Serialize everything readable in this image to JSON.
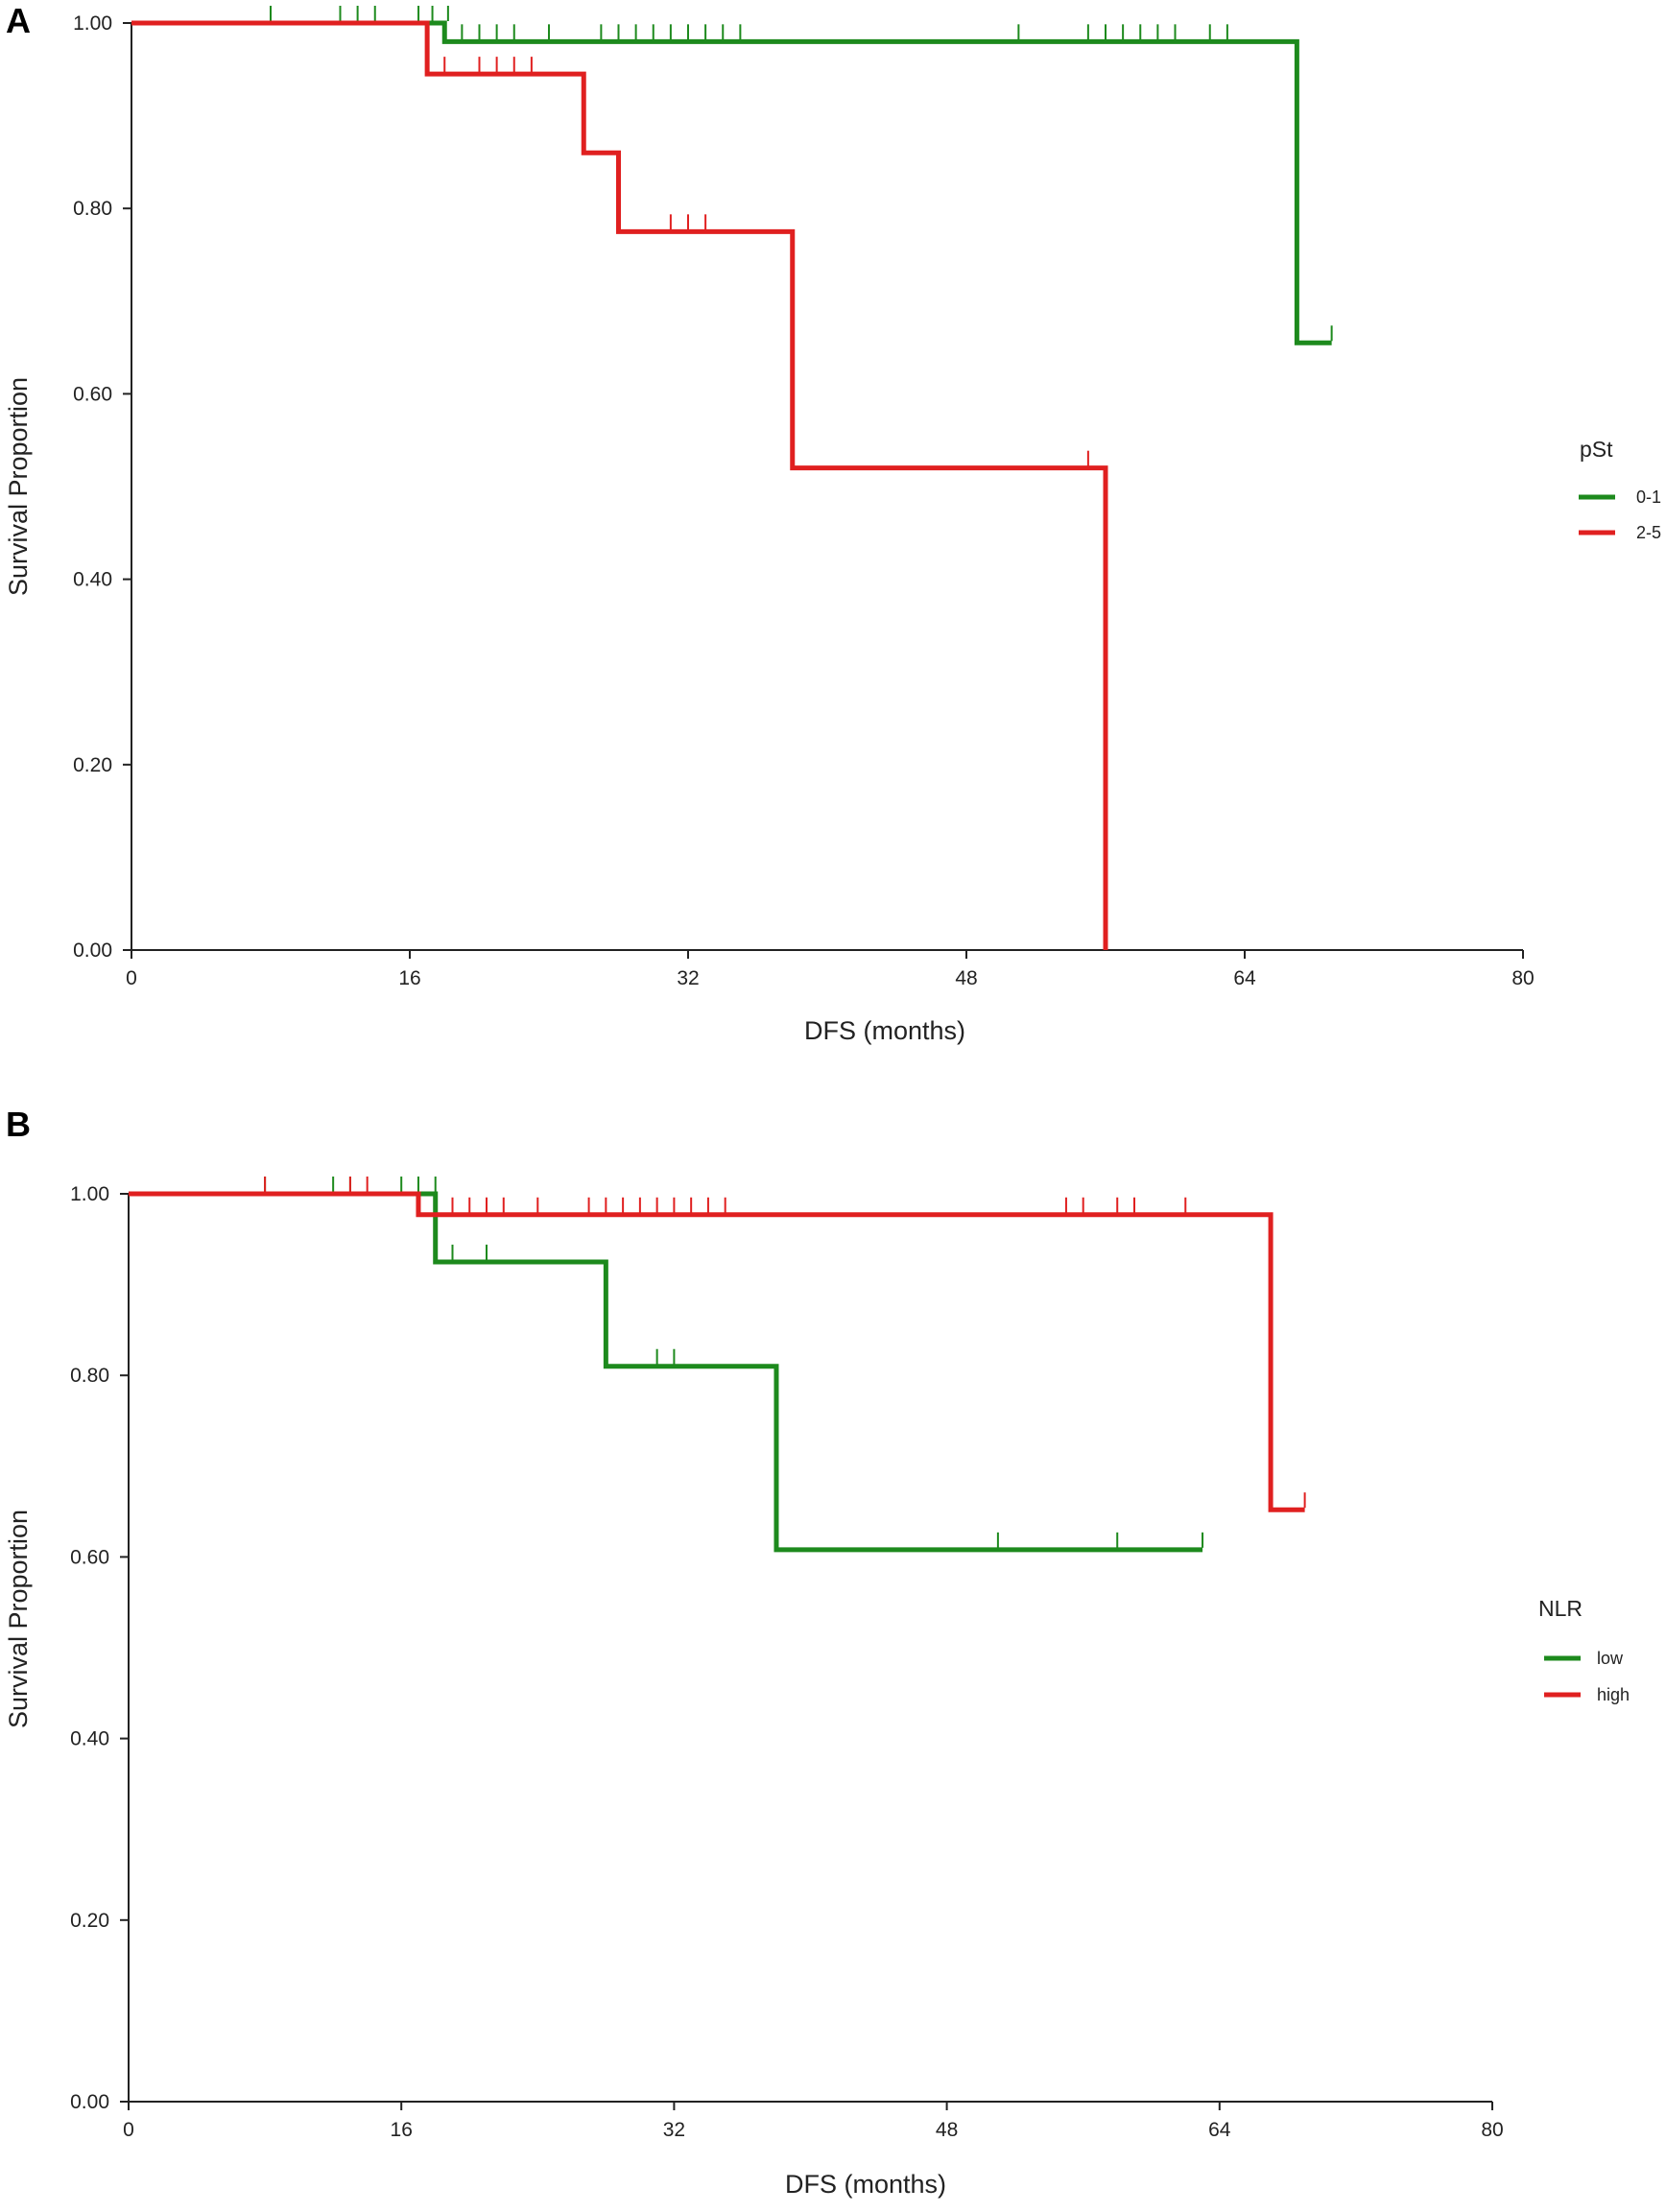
{
  "colors": {
    "green": "#1d8a1d",
    "red": "#e02020"
  },
  "chart_data": [
    {
      "panel": "A",
      "type": "line",
      "step": true,
      "xlabel": "DFS (months)",
      "ylabel": "Survival Proportion",
      "xlim": [
        0,
        80
      ],
      "ylim": [
        0,
        1
      ],
      "xticks": [
        0,
        16,
        32,
        48,
        64,
        80
      ],
      "xtick_labels": [
        "0",
        "16",
        "32",
        "48",
        "64",
        "80"
      ],
      "yticks": [
        0,
        0.2,
        0.4,
        0.6,
        0.8,
        1.0
      ],
      "ytick_labels": [
        "0.00",
        "0.20",
        "0.40",
        "0.60",
        "0.80",
        "1.00"
      ],
      "legend": {
        "title": "pSt",
        "position": "right"
      },
      "series": [
        {
          "name": "0-1",
          "color": "#1d8a1d",
          "steps": [
            [
              0,
              1.0
            ],
            [
              18.0,
              0.98
            ],
            [
              67.0,
              0.655
            ],
            [
              69.0,
              0.655
            ]
          ],
          "censored": [
            [
              8,
              1.0
            ],
            [
              12,
              1.0
            ],
            [
              13,
              1.0
            ],
            [
              14,
              1.0
            ],
            [
              16.5,
              1.0
            ],
            [
              17.3,
              1.0
            ],
            [
              18.2,
              1.0
            ],
            [
              19,
              0.98
            ],
            [
              20,
              0.98
            ],
            [
              21,
              0.98
            ],
            [
              22,
              0.98
            ],
            [
              24,
              0.98
            ],
            [
              27,
              0.98
            ],
            [
              28,
              0.98
            ],
            [
              29,
              0.98
            ],
            [
              30,
              0.98
            ],
            [
              31,
              0.98
            ],
            [
              32,
              0.98
            ],
            [
              33,
              0.98
            ],
            [
              34,
              0.98
            ],
            [
              35,
              0.98
            ],
            [
              51,
              0.98
            ],
            [
              55,
              0.98
            ],
            [
              56,
              0.98
            ],
            [
              57,
              0.98
            ],
            [
              58,
              0.98
            ],
            [
              59,
              0.98
            ],
            [
              60,
              0.98
            ],
            [
              62,
              0.98
            ],
            [
              63,
              0.98
            ],
            [
              69,
              0.655
            ]
          ]
        },
        {
          "name": "2-5",
          "color": "#e02020",
          "steps": [
            [
              0,
              1.0
            ],
            [
              17.0,
              0.945
            ],
            [
              26.0,
              0.86
            ],
            [
              28.0,
              0.775
            ],
            [
              38.0,
              0.52
            ],
            [
              56.0,
              0.0
            ]
          ],
          "censored": [
            [
              18,
              0.945
            ],
            [
              20,
              0.945
            ],
            [
              21,
              0.945
            ],
            [
              22,
              0.945
            ],
            [
              23,
              0.945
            ],
            [
              31,
              0.775
            ],
            [
              32,
              0.775
            ],
            [
              33,
              0.775
            ],
            [
              55,
              0.52
            ]
          ]
        }
      ]
    },
    {
      "panel": "B",
      "type": "line",
      "step": true,
      "xlabel": "DFS (months)",
      "ylabel": "Survival Proportion",
      "xlim": [
        0,
        80
      ],
      "ylim": [
        0,
        1
      ],
      "xticks": [
        0,
        16,
        32,
        48,
        64,
        80
      ],
      "xtick_labels": [
        "0",
        "16",
        "32",
        "48",
        "64",
        "80"
      ],
      "yticks": [
        0,
        0.2,
        0.4,
        0.6,
        0.8,
        1.0
      ],
      "ytick_labels": [
        "0.00",
        "0.20",
        "0.40",
        "0.60",
        "0.80",
        "1.00"
      ],
      "legend": {
        "title": "NLR",
        "position": "right"
      },
      "series": [
        {
          "name": "low",
          "color": "#1d8a1d",
          "steps": [
            [
              0,
              1.0
            ],
            [
              18.0,
              0.925
            ],
            [
              28.0,
              0.81
            ],
            [
              38.0,
              0.608
            ],
            [
              63.0,
              0.608
            ]
          ],
          "censored": [
            [
              8,
              1.0
            ],
            [
              12,
              1.0
            ],
            [
              13,
              1.0
            ],
            [
              16,
              1.0
            ],
            [
              17,
              1.0
            ],
            [
              18,
              1.0
            ],
            [
              19,
              0.925
            ],
            [
              21,
              0.925
            ],
            [
              31,
              0.81
            ],
            [
              32,
              0.81
            ],
            [
              51,
              0.608
            ],
            [
              58,
              0.608
            ],
            [
              63,
              0.608
            ]
          ]
        },
        {
          "name": "high",
          "color": "#e02020",
          "steps": [
            [
              0,
              1.0
            ],
            [
              17.0,
              0.977
            ],
            [
              67.0,
              0.652
            ],
            [
              69.0,
              0.652
            ]
          ],
          "censored": [
            [
              8,
              1.0
            ],
            [
              13,
              1.0
            ],
            [
              14,
              1.0
            ],
            [
              19,
              0.977
            ],
            [
              20,
              0.977
            ],
            [
              21,
              0.977
            ],
            [
              22,
              0.977
            ],
            [
              24,
              0.977
            ],
            [
              27,
              0.977
            ],
            [
              28,
              0.977
            ],
            [
              29,
              0.977
            ],
            [
              30,
              0.977
            ],
            [
              31,
              0.977
            ],
            [
              32,
              0.977
            ],
            [
              33,
              0.977
            ],
            [
              34,
              0.977
            ],
            [
              35,
              0.977
            ],
            [
              55,
              0.977
            ],
            [
              56,
              0.977
            ],
            [
              58,
              0.977
            ],
            [
              59,
              0.977
            ],
            [
              62,
              0.977
            ],
            [
              69,
              0.652
            ]
          ]
        }
      ]
    }
  ]
}
